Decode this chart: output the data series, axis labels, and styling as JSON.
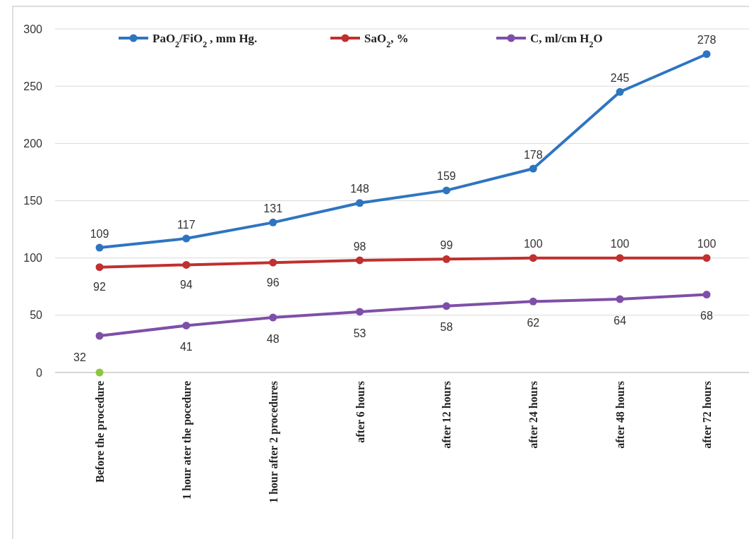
{
  "chart_data": {
    "type": "line",
    "categories": [
      "Before the procedure",
      "1 hour ater the pocedure",
      "1 hour after 2 procedures",
      "after  6 hours",
      "after  12 hours",
      "after  24 hours",
      "after  48 hours",
      "after  72 hours"
    ],
    "series": [
      {
        "name": "PaO$_{2}$/FiO$_{2}$ , mm Hg.",
        "color": "#2e75c0",
        "values": [
          109,
          117,
          131,
          148,
          159,
          178,
          245,
          278
        ]
      },
      {
        "name": "SaO$_{2}$, %",
        "color": "#c0302e",
        "values": [
          92,
          94,
          96,
          98,
          99,
          100,
          100,
          100
        ]
      },
      {
        "name": "C, ml/cm H$_{2}$O",
        "color": "#7f4fa8",
        "values": [
          32,
          41,
          48,
          53,
          58,
          62,
          64,
          68
        ]
      },
      {
        "type": "scatter",
        "color": "#8dc63f",
        "values": [
          0,
          null,
          null,
          null,
          null,
          null,
          null,
          null
        ],
        "value_labels": [
          null,
          null,
          null,
          null,
          null,
          null,
          null,
          null
        ]
      }
    ],
    "ylim": [
      0,
      300
    ],
    "yticks": [
      0,
      50,
      100,
      150,
      200,
      250,
      300
    ],
    "grid": "y",
    "legend": "top",
    "marker": "circle",
    "line_style": "solid",
    "data_labels": true
  }
}
